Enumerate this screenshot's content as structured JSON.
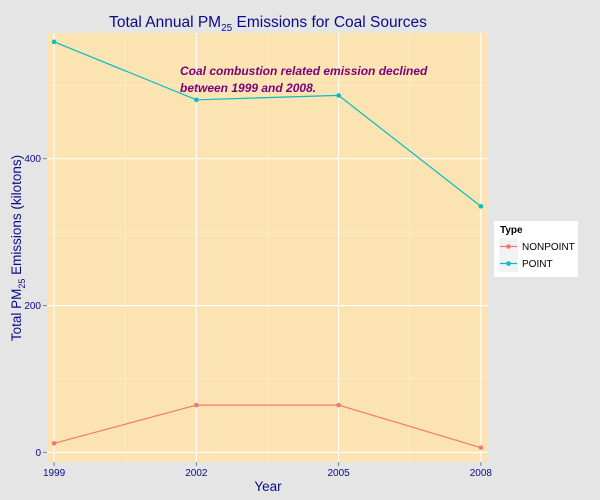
{
  "chart_data": {
    "type": "line",
    "title": {
      "main": "Total Annual PM",
      "sub": "25",
      "rest": " Emissions for Coal Sources"
    },
    "xlabel": "Year",
    "ylabel": {
      "main": "Total PM",
      "sub": "25",
      "rest": " Emissions (kilotons)"
    },
    "x": [
      1999,
      2002,
      2005,
      2008
    ],
    "xticks": [
      "1999",
      "2002",
      "2005",
      "2008"
    ],
    "yticks": [
      0,
      200,
      400
    ],
    "ytick_labels": [
      "0",
      "200",
      "400"
    ],
    "xlim": [
      1998.85,
      2008.15
    ],
    "ylim": [
      -13,
      571
    ],
    "series": [
      {
        "name": "NONPOINT",
        "values": [
          12.5,
          64.5,
          64.5,
          6.5
        ],
        "color": "#F8766D"
      },
      {
        "name": "POINT",
        "values": [
          559,
          480,
          486,
          335
        ],
        "color": "#00BFC4"
      }
    ],
    "legend": {
      "title": "Type",
      "position": "right"
    },
    "annotation": {
      "lines": [
        "Coal combustion related emission declined",
        "between 1999 and 2008."
      ],
      "color": "#7a007a"
    },
    "panel_background": "#fce4b2",
    "grid": true,
    "text_color": "#0a0a8c"
  }
}
